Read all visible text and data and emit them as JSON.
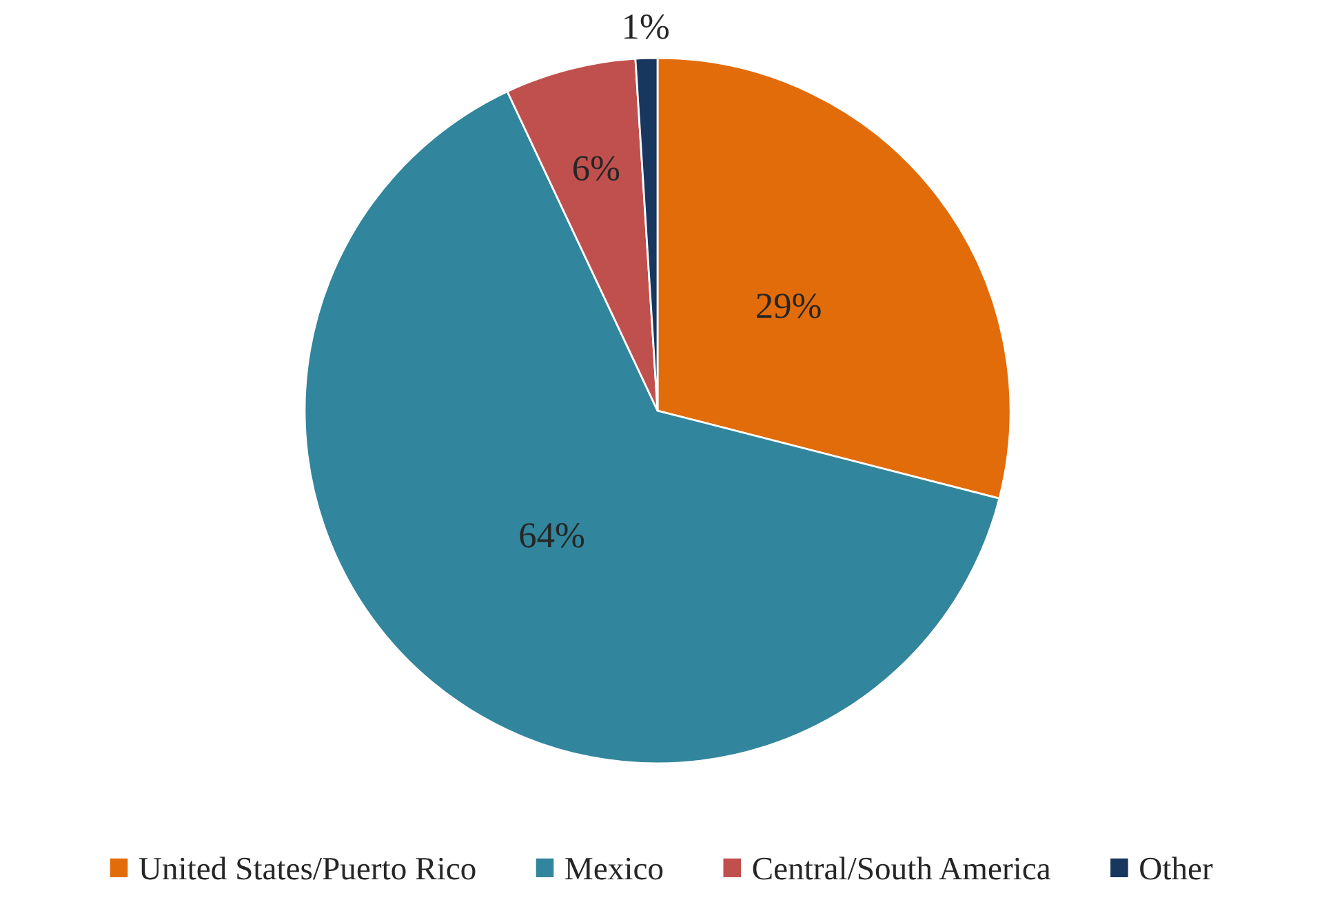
{
  "chart_data": {
    "type": "pie",
    "categories": [
      "United States/Puerto Rico",
      "Mexico",
      "Central/South America",
      "Other"
    ],
    "values": [
      29,
      64,
      6,
      1
    ],
    "colors": [
      "#e36c0a",
      "#31859c",
      "#c0504d",
      "#17375e"
    ],
    "value_labels": [
      "29%",
      "64%",
      "6%",
      "1%"
    ],
    "legend": "bottom"
  }
}
